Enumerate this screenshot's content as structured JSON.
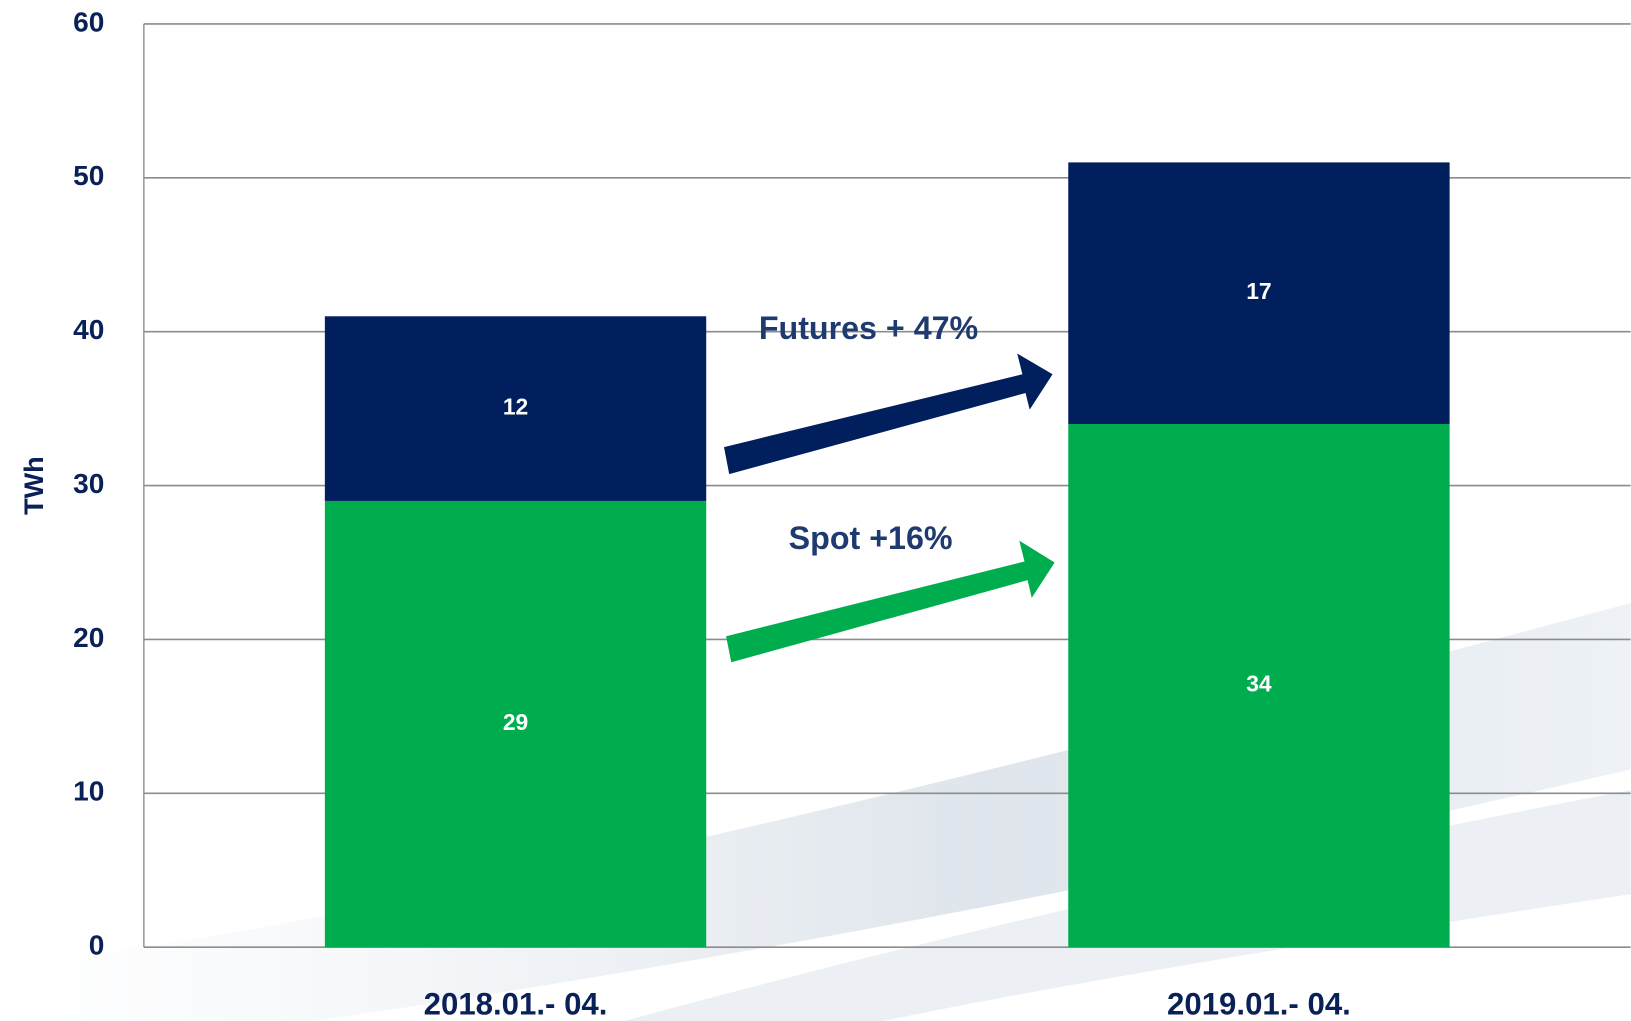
{
  "chart_data": {
    "type": "stacked_bar",
    "y_label": "TWh",
    "categories": [
      "2018.01.- 04.",
      "2019.01.- 04."
    ],
    "series": [
      {
        "color": "#00ad4e",
        "values": [
          29,
          34
        ]
      },
      {
        "color": "#001f5c",
        "values": [
          12,
          17
        ]
      }
    ],
    "annotations": [
      "Futures + 47%",
      "Spot +16%"
    ],
    "ylim": [
      0,
      60
    ],
    "yticks": [
      0,
      10,
      20,
      30,
      40,
      50,
      60
    ],
    "grid": true
  }
}
